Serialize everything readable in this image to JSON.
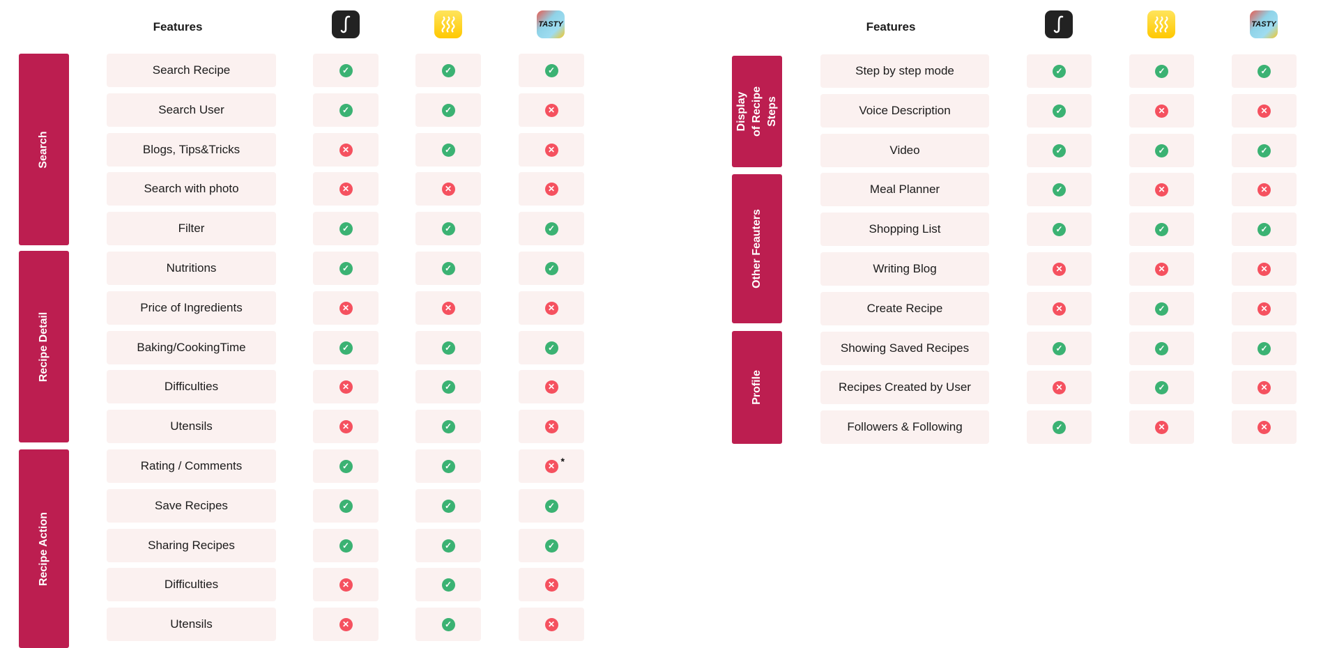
{
  "colors": {
    "category": "#BC1E50",
    "cell": "#FBF1F0",
    "yes": "#3BB273",
    "no": "#F5515F"
  },
  "apps": [
    {
      "icon": "sidekick-s-icon"
    },
    {
      "icon": "waves-icon"
    },
    {
      "icon": "tasty-icon",
      "label": "TASTY"
    }
  ],
  "tables": [
    {
      "header": "Features",
      "groups": [
        {
          "label": "Search",
          "rows": [
            {
              "feature": "Search Recipe",
              "values": [
                true,
                true,
                true
              ]
            },
            {
              "feature": "Search User",
              "values": [
                true,
                true,
                false
              ]
            },
            {
              "feature": "Blogs, Tips&Tricks",
              "values": [
                false,
                true,
                false
              ]
            },
            {
              "feature": "Search with photo",
              "values": [
                false,
                false,
                false
              ]
            },
            {
              "feature": "Filter",
              "values": [
                true,
                true,
                true
              ]
            }
          ]
        },
        {
          "label": "Recipe Detail",
          "rows": [
            {
              "feature": "Nutritions",
              "values": [
                true,
                true,
                true
              ]
            },
            {
              "feature": "Price of Ingredients",
              "values": [
                false,
                false,
                false
              ]
            },
            {
              "feature": "Baking/CookingTime",
              "values": [
                true,
                true,
                true
              ]
            },
            {
              "feature": "Difficulties",
              "values": [
                false,
                true,
                false
              ]
            },
            {
              "feature": "Utensils",
              "values": [
                false,
                true,
                false
              ]
            }
          ]
        },
        {
          "label": "Recipe Action",
          "rows": [
            {
              "feature": "Rating / Comments",
              "values": [
                true,
                true,
                false
              ],
              "note": "*"
            },
            {
              "feature": "Save Recipes",
              "values": [
                true,
                true,
                true
              ]
            },
            {
              "feature": "Sharing Recipes",
              "values": [
                true,
                true,
                true
              ]
            },
            {
              "feature": "Difficulties",
              "values": [
                false,
                true,
                false
              ]
            },
            {
              "feature": "Utensils",
              "values": [
                false,
                true,
                false
              ]
            }
          ]
        }
      ]
    },
    {
      "header": "Features",
      "groups": [
        {
          "label": "Display of Recipe Steps",
          "rows": [
            {
              "feature": "Step by step mode",
              "values": [
                true,
                true,
                true
              ]
            },
            {
              "feature": "Voice Description",
              "values": [
                true,
                false,
                false
              ]
            },
            {
              "feature": "Video",
              "values": [
                true,
                true,
                true
              ]
            }
          ]
        },
        {
          "label": "Other Feauters",
          "rows": [
            {
              "feature": "Meal Planner",
              "values": [
                true,
                false,
                false
              ]
            },
            {
              "feature": "Shopping List",
              "values": [
                true,
                true,
                true
              ]
            },
            {
              "feature": "Writing Blog",
              "values": [
                false,
                false,
                false
              ]
            },
            {
              "feature": "Create Recipe",
              "values": [
                false,
                true,
                false
              ]
            }
          ]
        },
        {
          "label": "Profile",
          "rows": [
            {
              "feature": "Showing Saved Recipes",
              "values": [
                true,
                true,
                true
              ]
            },
            {
              "feature": "Recipes Created by User",
              "values": [
                false,
                true,
                false
              ]
            },
            {
              "feature": "Followers & Following",
              "values": [
                true,
                false,
                false
              ]
            }
          ]
        }
      ]
    }
  ]
}
